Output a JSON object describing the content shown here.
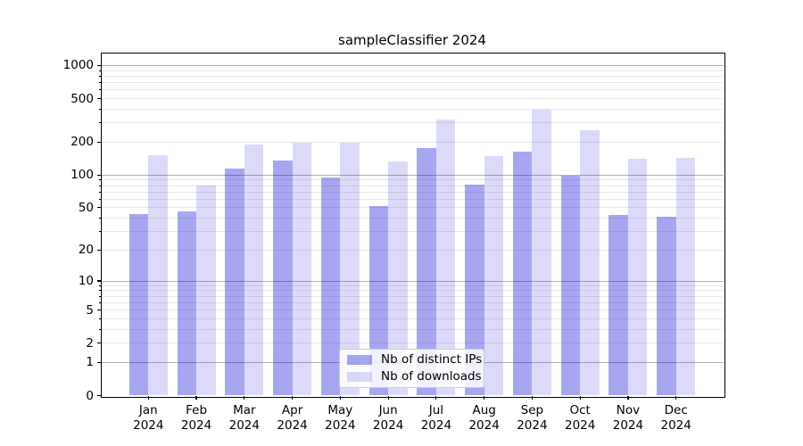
{
  "figure": {
    "title": "sampleClassifier 2024",
    "background": "#ffffff"
  },
  "chart_data": {
    "type": "bar",
    "title": "sampleClassifier 2024",
    "categories": [
      "Jan\n2024",
      "Feb\n2024",
      "Mar\n2024",
      "Apr\n2024",
      "May\n2024",
      "Jun\n2024",
      "Jul\n2024",
      "Aug\n2024",
      "Sep\n2024",
      "Oct\n2024",
      "Nov\n2024",
      "Dec\n2024"
    ],
    "series": [
      {
        "name": "Nb of distinct IPs",
        "color": "rgba(10,10,215,0.36)",
        "values": [
          44,
          46,
          115,
          135,
          95,
          52,
          177,
          82,
          165,
          98,
          43,
          41
        ]
      },
      {
        "name": "Nb of downloads",
        "color": "rgba(10,10,215,0.145)",
        "values": [
          153,
          80,
          190,
          197,
          197,
          134,
          320,
          150,
          394,
          255,
          140,
          143
        ]
      }
    ],
    "xlabel": "",
    "ylabel": "",
    "yscale": "log1p",
    "ylim": [
      0,
      1310
    ],
    "y_ticks": [
      0,
      1,
      2,
      5,
      10,
      20,
      50,
      100,
      200,
      500,
      1000
    ],
    "grid_major": [
      1,
      10,
      100,
      1000
    ],
    "grid_minor": [
      2,
      3,
      4,
      5,
      6,
      7,
      8,
      9,
      20,
      30,
      40,
      50,
      60,
      70,
      80,
      90,
      200,
      300,
      400,
      500,
      600,
      700,
      800,
      900
    ],
    "grid_on": true,
    "legend": {
      "position": "lower center",
      "labels": [
        "Nb of distinct IPs",
        "Nb of downloads"
      ]
    }
  },
  "colors": {
    "grid_major": "#b0b0b0",
    "grid_minor": "#e8e8e8",
    "axis": "#000000",
    "text": "#000000",
    "legend_border": "#cccccc",
    "bar_dark": "rgba(10,10,215,0.36)",
    "bar_light": "rgba(10,10,215,0.145)"
  }
}
